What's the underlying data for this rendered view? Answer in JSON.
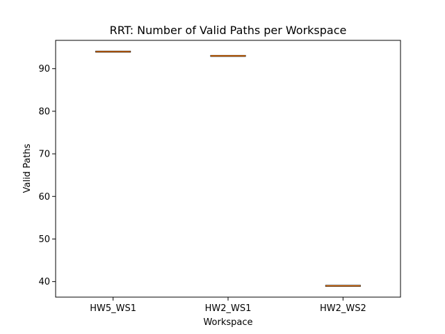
{
  "chart_data": {
    "type": "box",
    "title": "RRT: Number of Valid Paths per Workspace",
    "xlabel": "Workspace",
    "ylabel": "Valid Paths",
    "categories": [
      "HW5_WS1",
      "HW2_WS1",
      "HW2_WS2"
    ],
    "values": [
      94,
      93,
      39
    ],
    "ylim": [
      36.35,
      96.65
    ],
    "yticks": [
      40,
      50,
      60,
      70,
      80,
      90
    ],
    "grid": false,
    "legend": "none",
    "colors": {
      "median": "#ff7f0e",
      "box": "#000000",
      "axes": "#000000"
    }
  }
}
